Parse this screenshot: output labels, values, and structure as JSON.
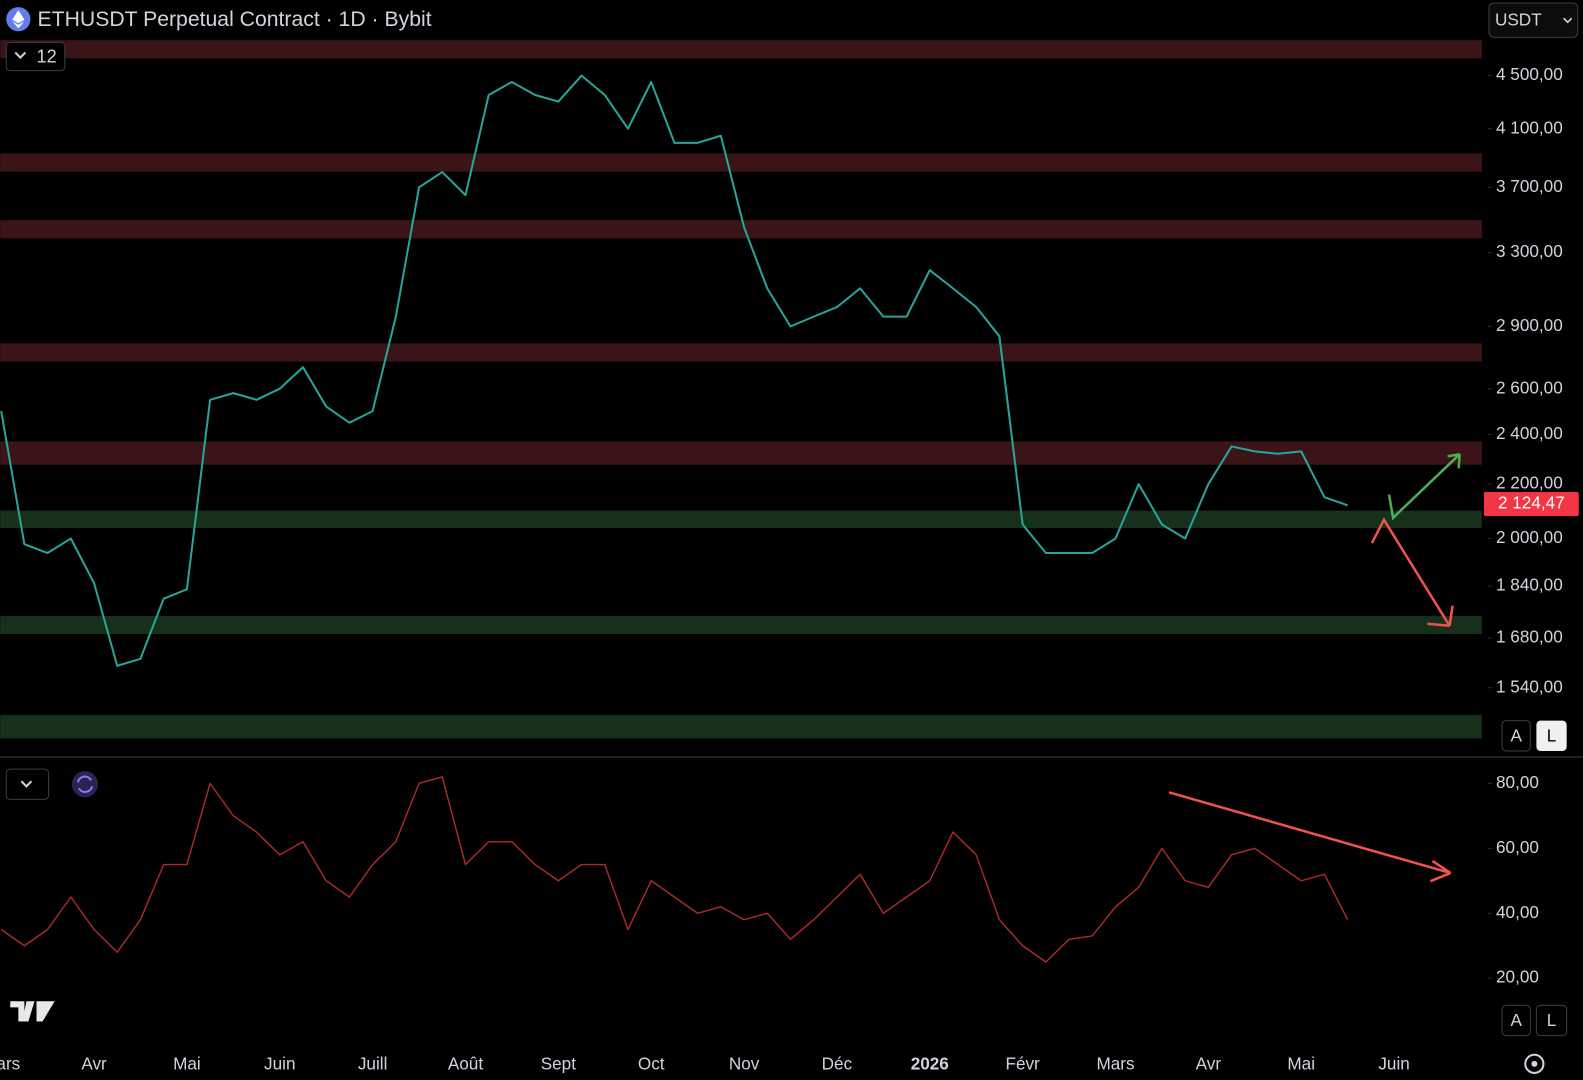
{
  "ui": {
    "title": "ETHUSDT Perpetual Contract · 1D · Bybit",
    "interval_count": "12",
    "currency": "USDT",
    "auto_button": "A",
    "log_button": "L"
  },
  "chart_data": [
    {
      "type": "line",
      "log_scale": true,
      "categories": [
        "Mars",
        null,
        null,
        null,
        "Avr",
        null,
        null,
        null,
        "Mai",
        null,
        null,
        null,
        "Juin",
        null,
        null,
        null,
        "Juill",
        null,
        null,
        null,
        "Août",
        null,
        null,
        null,
        "Sept",
        null,
        null,
        null,
        "Oct",
        null,
        null,
        null,
        "Nov",
        null,
        null,
        null,
        "Déc",
        null,
        null,
        null,
        "2026",
        null,
        null,
        null,
        "Févr",
        null,
        null,
        null,
        "Mars",
        null,
        null,
        null,
        "Avr",
        null,
        null,
        null,
        "Mai",
        null,
        null,
        null,
        "Juin"
      ],
      "series": [
        {
          "color": "#26a69a",
          "values": [
            2500,
            1980,
            1950,
            2000,
            1850,
            1600,
            1620,
            1800,
            1830,
            2550,
            2580,
            2550,
            2600,
            2700,
            2520,
            2450,
            2500,
            2950,
            3700,
            3800,
            3650,
            4350,
            4450,
            4350,
            4300,
            4500,
            4350,
            4100,
            4450,
            4000,
            4000,
            4050,
            3450,
            3100,
            2900,
            2950,
            3000,
            3100,
            2950,
            2950,
            3200,
            3100,
            3000,
            2850,
            2050,
            1950,
            1950,
            1950,
            2000,
            2200,
            2050,
            2000,
            2200,
            2350,
            2330,
            2320,
            2330,
            2150,
            2120,
            null,
            null
          ]
        }
      ],
      "ylim": [
        1364,
        5137
      ],
      "yticks": [
        {
          "value": 4500,
          "label": "4 500,00"
        },
        {
          "value": 4100,
          "label": "4 100,00"
        },
        {
          "value": 3700,
          "label": "3 700,00"
        },
        {
          "value": 3300,
          "label": "3 300,00"
        },
        {
          "value": 2900,
          "label": "2 900,00"
        },
        {
          "value": 2600,
          "label": "2 600,00"
        },
        {
          "value": 2400,
          "label": "2 400,00"
        },
        {
          "value": 2200,
          "label": "2 200,00"
        },
        {
          "value": 2000,
          "label": "2 000,00"
        },
        {
          "value": 1840,
          "label": "1 840,00"
        },
        {
          "value": 1680,
          "label": "1 680,00"
        },
        {
          "value": 1540,
          "label": "1 540,00"
        }
      ],
      "zones": [
        {
          "low": 4638,
          "high": 4788,
          "color": "#3a1417"
        },
        {
          "low": 3803,
          "high": 3927,
          "color": "#3a1417"
        },
        {
          "low": 3384,
          "high": 3493,
          "color": "#3a1417"
        },
        {
          "low": 2727,
          "high": 2815,
          "color": "#3a1417"
        },
        {
          "low": 2276,
          "high": 2371,
          "color": "#3a1417"
        },
        {
          "low": 2037,
          "high": 2100,
          "color": "#16301c"
        },
        {
          "low": 1692,
          "high": 1746,
          "color": "#16301c"
        },
        {
          "low": 1409,
          "high": 1468,
          "color": "#16301c"
        }
      ],
      "last_price": {
        "value": 2124.47,
        "label": "2 124,47"
      }
    },
    {
      "type": "line",
      "series": [
        {
          "color": "#b02a2a",
          "values": [
            35,
            30,
            35,
            45,
            35,
            28,
            38,
            55,
            55,
            80,
            70,
            65,
            58,
            62,
            50,
            45,
            55,
            62,
            80,
            82,
            55,
            62,
            62,
            55,
            50,
            55,
            55,
            35,
            50,
            45,
            40,
            42,
            38,
            40,
            32,
            38,
            45,
            52,
            40,
            45,
            50,
            65,
            58,
            38,
            30,
            25,
            32,
            33,
            42,
            48,
            60,
            50,
            48,
            58,
            60,
            55,
            50,
            52,
            38,
            null,
            null
          ]
        }
      ],
      "ylim": [
        0,
        87.5
      ],
      "yticks": [
        {
          "value": 80,
          "label": "80,00"
        },
        {
          "value": 60,
          "label": "60,00"
        },
        {
          "value": 40,
          "label": "40,00"
        },
        {
          "value": 20,
          "label": "20,00"
        }
      ]
    }
  ]
}
